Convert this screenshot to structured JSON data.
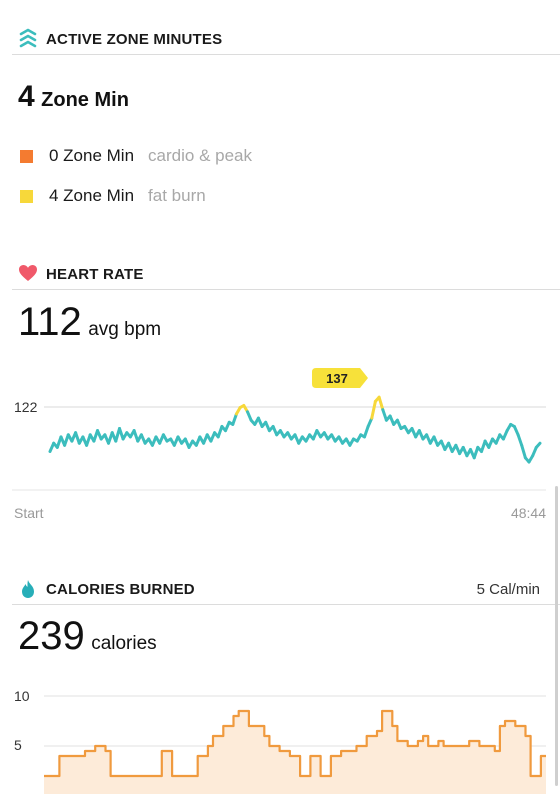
{
  "active_zone": {
    "title": "ACTIVE ZONE MINUTES",
    "total_value": "4",
    "total_unit": "Zone Min",
    "zones": [
      {
        "value": "0 Zone Min",
        "label": "cardio & peak",
        "color": "#f47b30"
      },
      {
        "value": "4 Zone Min",
        "label": "fat burn",
        "color": "#f7d83a"
      }
    ]
  },
  "heart_rate": {
    "title": "HEART RATE",
    "value": "112",
    "unit": "avg bpm",
    "y_label": "122",
    "peak_badge": "137",
    "x_start": "Start",
    "x_end": "48:44"
  },
  "calories": {
    "title": "CALORIES BURNED",
    "rate": "5 Cal/min",
    "value": "239",
    "unit": "calories",
    "y_labels": [
      "10",
      "5"
    ]
  },
  "chart_data": [
    {
      "type": "line",
      "title": "",
      "xlabel": "",
      "ylabel": "",
      "x_range": [
        "Start",
        "48:44"
      ],
      "ylim": [
        90,
        145
      ],
      "reference_value": 122,
      "peak_value": 137,
      "series": [
        {
          "color": "#3cbdbd",
          "highlight_color": "#f7d83a",
          "values": [
            106,
            110,
            108,
            113,
            109,
            114,
            111,
            115,
            110,
            113,
            109,
            114,
            111,
            116,
            112,
            114,
            110,
            115,
            111,
            117,
            112,
            115,
            113,
            116,
            111,
            114,
            110,
            112,
            109,
            113,
            110,
            114,
            111,
            112,
            109,
            113,
            110,
            112,
            108,
            111,
            109,
            113,
            110,
            114,
            111,
            115,
            113,
            118,
            116,
            120,
            119,
            124,
            127,
            128,
            125,
            121,
            119,
            122,
            118,
            120,
            116,
            118,
            114,
            116,
            113,
            115,
            112,
            114,
            110,
            113,
            111,
            114,
            112,
            116,
            113,
            115,
            112,
            114,
            111,
            113,
            110,
            112,
            109,
            112,
            111,
            114,
            113,
            118,
            122,
            130,
            132,
            126,
            121,
            123,
            119,
            121,
            117,
            118,
            115,
            117,
            113,
            116,
            112,
            114,
            110,
            113,
            109,
            111,
            107,
            110,
            106,
            109,
            105,
            108,
            104,
            107,
            103,
            108,
            106,
            111,
            108,
            112,
            110,
            114,
            112,
            116,
            119,
            118,
            114,
            109,
            103,
            101,
            104,
            108,
            110
          ]
        }
      ]
    },
    {
      "type": "area",
      "title": "",
      "xlabel": "",
      "ylabel": "",
      "ylim": [
        1,
        11
      ],
      "x_range": [
        "Start",
        "48:44"
      ],
      "series": [
        {
          "color": "#f09a3e",
          "fill": "#fdebd9",
          "values": [
            2,
            2,
            2,
            4,
            4,
            4,
            4,
            4,
            4.5,
            4.5,
            5,
            5,
            4.5,
            2,
            2,
            2,
            2,
            2,
            2,
            2,
            2,
            2,
            2,
            4.5,
            4.5,
            2,
            2,
            2,
            2,
            2,
            4,
            4,
            5,
            6,
            6,
            7,
            7,
            8,
            8.5,
            8.5,
            7,
            7,
            7,
            6,
            5,
            5,
            4.5,
            4.5,
            4,
            4,
            2,
            2,
            4,
            4,
            2,
            2,
            4,
            4,
            4.5,
            4.5,
            4.5,
            5,
            5,
            6,
            6,
            6.5,
            8.5,
            8.5,
            7,
            5.5,
            5.5,
            5,
            5,
            5.5,
            6,
            5,
            5,
            5.5,
            5,
            5,
            5,
            5,
            5,
            5.5,
            5.5,
            5,
            5,
            5,
            4.5,
            7,
            7.5,
            7.5,
            7,
            7,
            6,
            2,
            2,
            4
          ]
        }
      ]
    }
  ]
}
